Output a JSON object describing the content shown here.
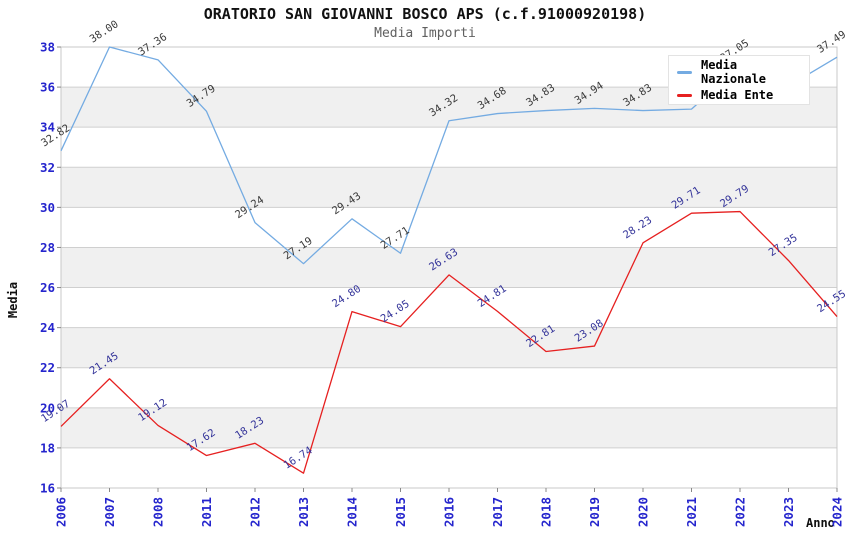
{
  "header": {
    "title": "ORATORIO SAN GIOVANNI BOSCO APS (c.f.91000920198)",
    "subtitle": "Media Importi"
  },
  "legend": {
    "position": "top-right-overlay",
    "items": [
      {
        "label": "Media Nazionale",
        "color": "#74ABE2"
      },
      {
        "label": "Media Ente",
        "color": "#E62020"
      }
    ]
  },
  "colors": {
    "tick_label": "#2525CD",
    "grid_line": "#CFCFCF",
    "band_fill": "#F0F0F0",
    "plot_border": "#C8C8C8",
    "axis_tick": "#888888",
    "subtitle": "#606060"
  },
  "chart_data": {
    "type": "line",
    "title": "ORATORIO SAN GIOVANNI BOSCO APS (c.f.91000920198)",
    "subtitle": "Media Importi",
    "xlabel": "Anno",
    "ylabel": "Media",
    "ylim": [
      16,
      38
    ],
    "y_ticks": [
      38,
      36,
      34,
      32,
      30,
      28,
      26,
      24,
      22,
      20,
      18,
      16
    ],
    "grid": "horizontal gridlines with alternating gray bands",
    "legend_position": "top-right overlay box",
    "categories": [
      "2006",
      "2007",
      "2008",
      "2011",
      "2012",
      "2013",
      "2014",
      "2015",
      "2016",
      "2017",
      "2018",
      "2019",
      "2020",
      "2021",
      "2022",
      "2023",
      "2024"
    ],
    "series": [
      {
        "name": "Media Nazionale",
        "color": "#74ABE2",
        "label_color": "#3A3A3A",
        "values": [
          32.82,
          38.0,
          37.36,
          34.79,
          29.24,
          27.19,
          29.43,
          27.71,
          34.32,
          34.68,
          34.83,
          34.94,
          34.83,
          34.9,
          37.05,
          36.05,
          37.49
        ],
        "labels_hidden_by_legend_indices": [
          13,
          15
        ]
      },
      {
        "name": "Media Ente",
        "color": "#E62020",
        "label_color": "#333399",
        "values": [
          19.07,
          21.45,
          19.12,
          17.62,
          18.23,
          16.74,
          24.8,
          24.05,
          26.63,
          24.81,
          22.81,
          23.08,
          28.23,
          29.71,
          29.79,
          27.35,
          24.55
        ]
      }
    ]
  }
}
